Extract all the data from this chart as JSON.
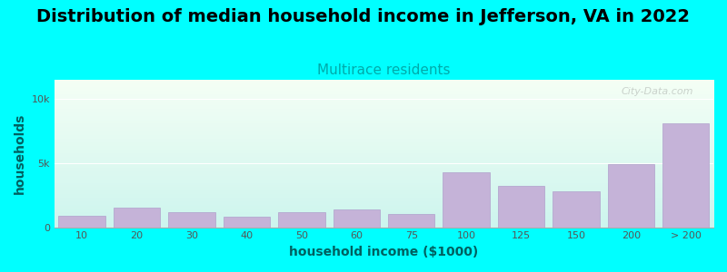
{
  "title": "Distribution of median household income in Jefferson, VA in 2022",
  "subtitle": "Multirace residents",
  "xlabel": "household income ($1000)",
  "ylabel": "households",
  "background_color": "#00FFFF",
  "bar_color": "#c5b3d8",
  "bar_edge_color": "#b0a0cc",
  "categories": [
    "10",
    "20",
    "30",
    "40",
    "50",
    "60",
    "75",
    "100",
    "125",
    "150",
    "200",
    "> 200"
  ],
  "values": [
    900,
    1500,
    1200,
    800,
    1200,
    1400,
    1000,
    4300,
    3200,
    2800,
    4900,
    8100
  ],
  "ytick_labels": [
    "0",
    "5k",
    "10k"
  ],
  "ytick_values": [
    0,
    5000,
    10000
  ],
  "ylim": [
    0,
    11500
  ],
  "title_fontsize": 14,
  "subtitle_fontsize": 11,
  "label_fontsize": 10,
  "tick_fontsize": 8,
  "watermark_text": "City-Data.com"
}
